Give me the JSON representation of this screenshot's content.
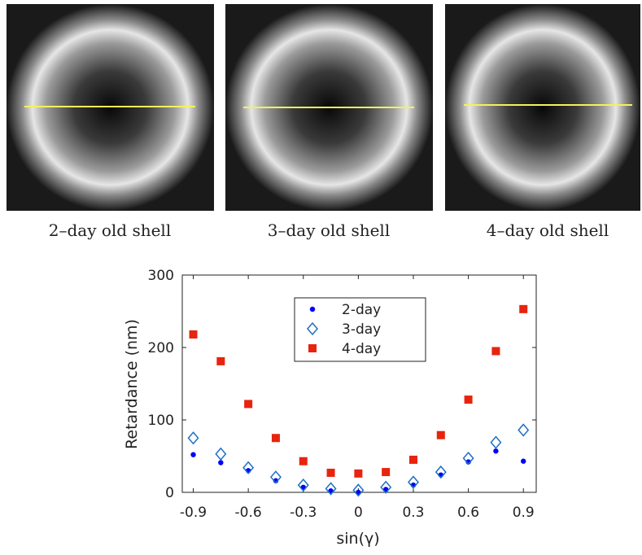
{
  "captions": [
    "2–day old shell",
    "3–day old shell",
    "4–day old shell"
  ],
  "chart_data": {
    "type": "scatter",
    "xlabel": "sin(γ)",
    "ylabel": "Retardance (nm)",
    "x": [
      -0.9,
      -0.75,
      -0.6,
      -0.45,
      -0.3,
      -0.15,
      0,
      0.15,
      0.3,
      0.45,
      0.6,
      0.75,
      0.9
    ],
    "series": [
      {
        "name": "2-day",
        "color": "#0000ff",
        "marker": "circle",
        "values": [
          52,
          41,
          30,
          16,
          7,
          2,
          0,
          4,
          10,
          24,
          42,
          57,
          43
        ]
      },
      {
        "name": "3-day",
        "color": "#1f6fc4",
        "marker": "diamond",
        "values": [
          75,
          53,
          34,
          21,
          10,
          5,
          3,
          7,
          14,
          28,
          47,
          69,
          86
        ]
      },
      {
        "name": "4-day",
        "color": "#e8230e",
        "marker": "square",
        "values": [
          218,
          181,
          122,
          75,
          43,
          27,
          26,
          28,
          45,
          79,
          128,
          195,
          253
        ]
      }
    ],
    "xlim": [
      -0.96,
      0.97
    ],
    "ylim": [
      0,
      300
    ],
    "xticks": [
      -0.9,
      -0.6,
      -0.3,
      0,
      0.3,
      0.6,
      0.9
    ],
    "yticks": [
      0,
      100,
      200,
      300
    ],
    "legend": "top-center"
  }
}
